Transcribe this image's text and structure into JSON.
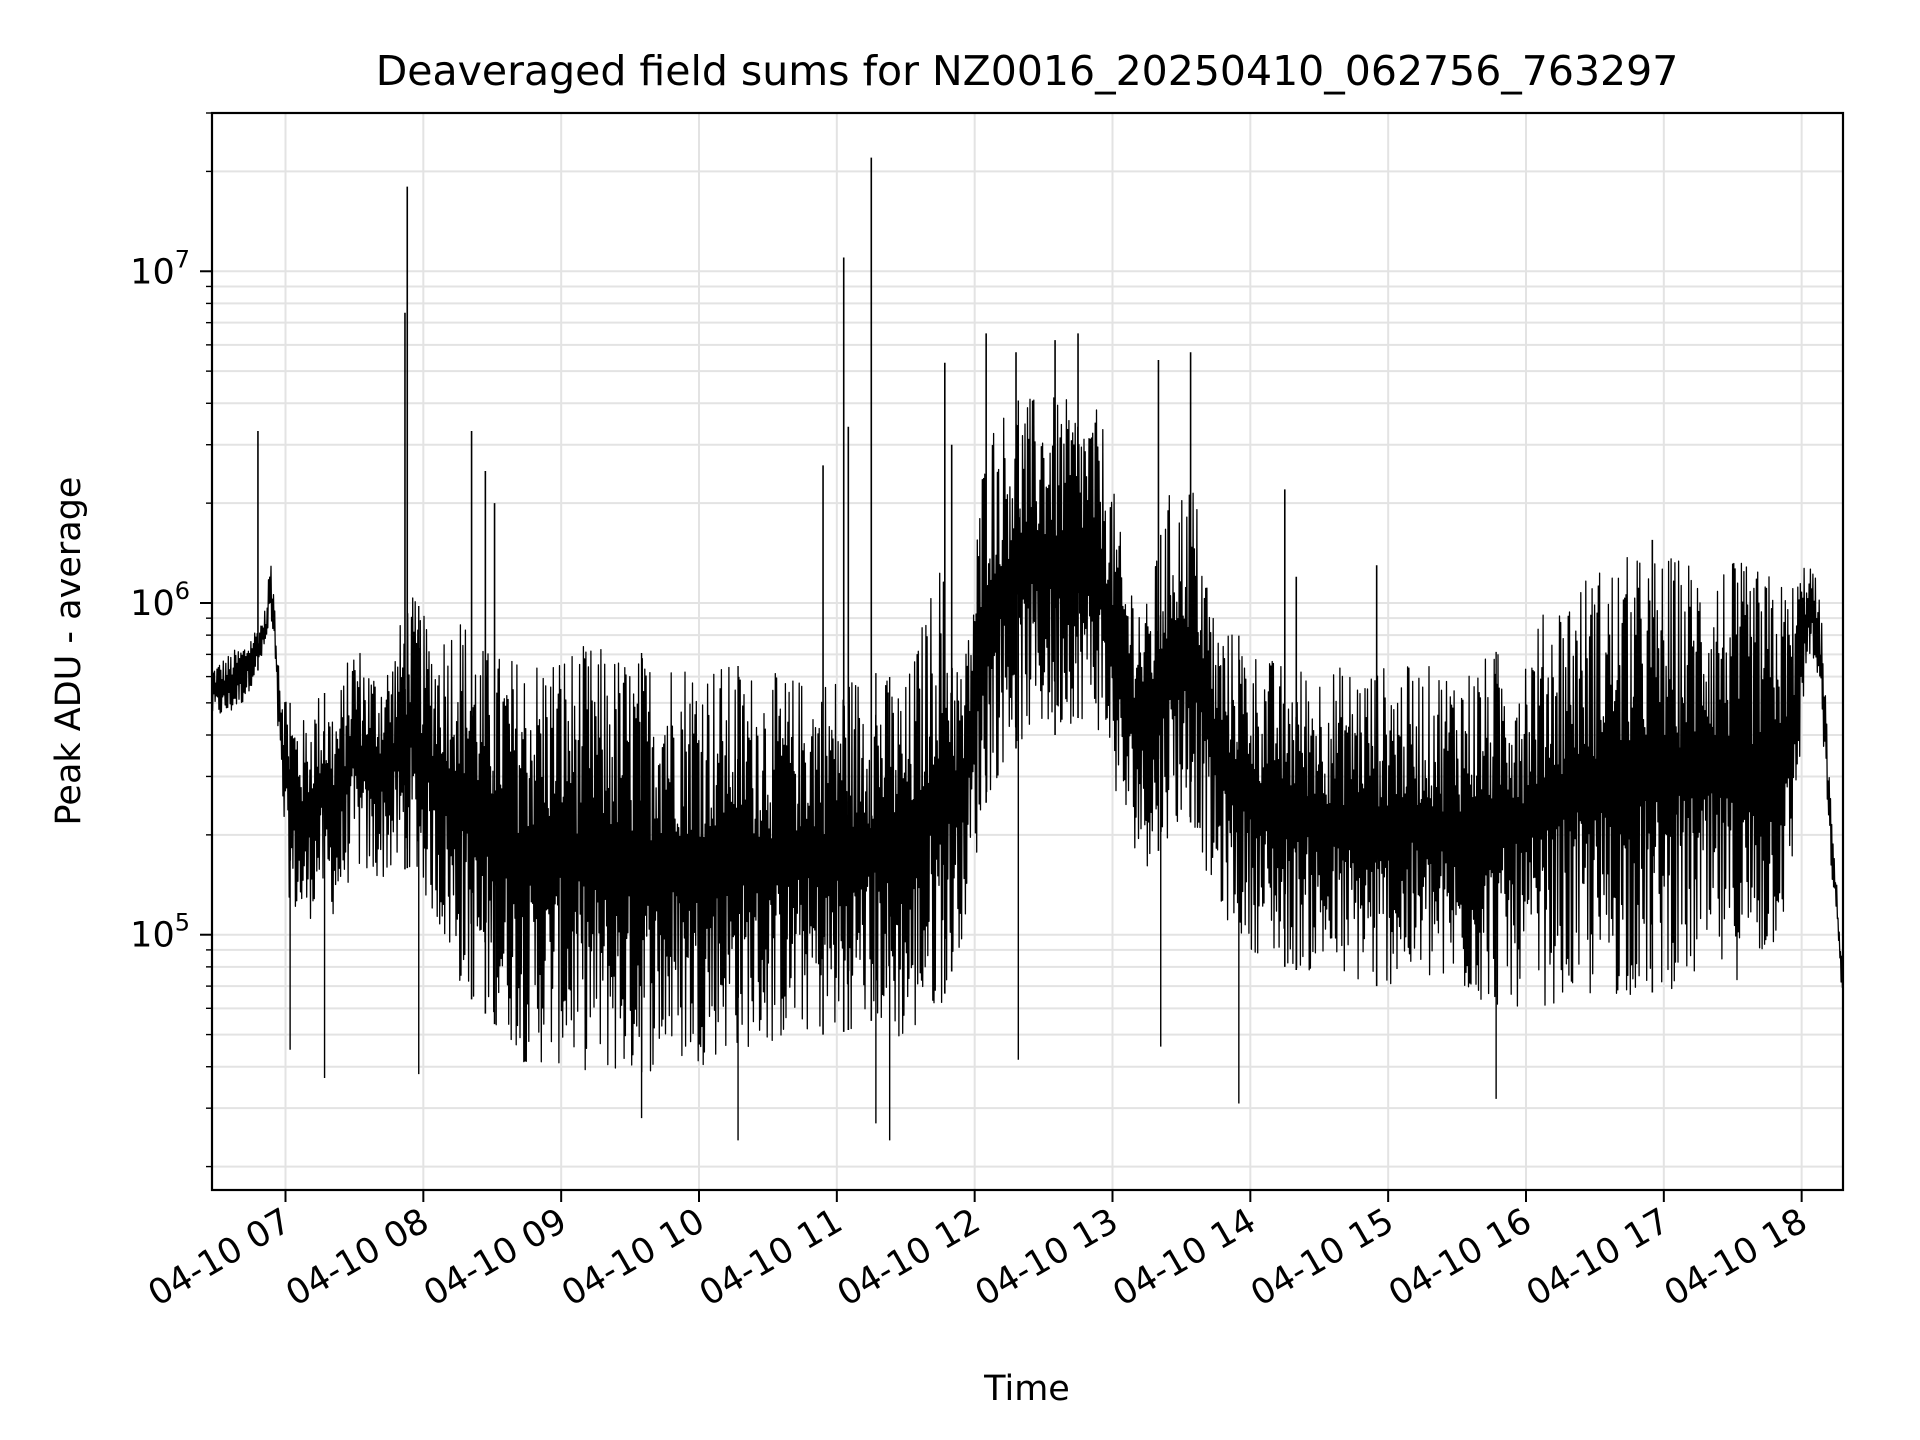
{
  "chart_data": {
    "type": "line",
    "title": "Deaveraged field sums for NZ0016_20250410_062756_763297",
    "xlabel": "Time",
    "ylabel": "Peak ADU - average",
    "x_scale": "time",
    "y_scale": "log",
    "xlim": [
      "2025-04-10 06:28",
      "2025-04-10 18:18"
    ],
    "ylim": [
      17000,
      30000000
    ],
    "x_ticks": [
      {
        "value": "2025-04-10 07:00",
        "label": "04-10 07"
      },
      {
        "value": "2025-04-10 08:00",
        "label": "04-10 08"
      },
      {
        "value": "2025-04-10 09:00",
        "label": "04-10 09"
      },
      {
        "value": "2025-04-10 10:00",
        "label": "04-10 10"
      },
      {
        "value": "2025-04-10 11:00",
        "label": "04-10 11"
      },
      {
        "value": "2025-04-10 12:00",
        "label": "04-10 12"
      },
      {
        "value": "2025-04-10 13:00",
        "label": "04-10 13"
      },
      {
        "value": "2025-04-10 14:00",
        "label": "04-10 14"
      },
      {
        "value": "2025-04-10 15:00",
        "label": "04-10 15"
      },
      {
        "value": "2025-04-10 16:00",
        "label": "04-10 16"
      },
      {
        "value": "2025-04-10 17:00",
        "label": "04-10 17"
      },
      {
        "value": "2025-04-10 18:00",
        "label": "04-10 18"
      }
    ],
    "y_ticks": [
      {
        "value": 100000,
        "base": "10",
        "exp": "5"
      },
      {
        "value": 1000000,
        "base": "10",
        "exp": "6"
      },
      {
        "value": 10000000,
        "base": "10",
        "exp": "7"
      }
    ],
    "grid": true,
    "line_color": "#000000",
    "grid_color": "#e3e3e3",
    "series": [
      {
        "x": [
          "2025-04-10 06:28",
          "2025-04-10 06:35",
          "2025-04-10 06:42",
          "2025-04-10 06:49",
          "2025-04-10 06:52",
          "2025-04-10 06:53",
          "2025-04-10 06:55",
          "2025-04-10 06:58",
          "2025-04-10 07:02",
          "2025-04-10 07:08",
          "2025-04-10 07:15",
          "2025-04-10 07:22",
          "2025-04-10 07:30",
          "2025-04-10 07:38",
          "2025-04-10 07:46",
          "2025-04-10 07:54",
          "2025-04-10 08:05",
          "2025-04-10 08:15",
          "2025-04-10 08:25",
          "2025-04-10 08:35",
          "2025-04-10 08:45",
          "2025-04-10 09:00",
          "2025-04-10 09:15",
          "2025-04-10 09:30",
          "2025-04-10 09:45",
          "2025-04-10 10:00",
          "2025-04-10 10:15",
          "2025-04-10 10:30",
          "2025-04-10 10:45",
          "2025-04-10 11:00",
          "2025-04-10 11:15",
          "2025-04-10 11:30",
          "2025-04-10 11:45",
          "2025-04-10 11:55",
          "2025-04-10 12:05",
          "2025-04-10 12:15",
          "2025-04-10 12:25",
          "2025-04-10 12:35",
          "2025-04-10 12:45",
          "2025-04-10 12:55",
          "2025-04-10 13:05",
          "2025-04-10 13:15",
          "2025-04-10 13:25",
          "2025-04-10 13:35",
          "2025-04-10 13:45",
          "2025-04-10 14:00",
          "2025-04-10 14:15",
          "2025-04-10 14:30",
          "2025-04-10 14:45",
          "2025-04-10 15:00",
          "2025-04-10 15:15",
          "2025-04-10 15:30",
          "2025-04-10 15:45",
          "2025-04-10 16:00",
          "2025-04-10 16:15",
          "2025-04-10 16:30",
          "2025-04-10 16:45",
          "2025-04-10 17:00",
          "2025-04-10 17:15",
          "2025-04-10 17:30",
          "2025-04-10 17:45",
          "2025-04-10 17:55",
          "2025-04-10 18:00",
          "2025-04-10 18:03",
          "2025-04-10 18:06",
          "2025-04-10 18:09",
          "2025-04-10 18:12",
          "2025-04-10 18:15",
          "2025-04-10 18:18"
        ],
        "hi": [
          650000,
          700000,
          760000,
          880000,
          1000000,
          1400000,
          1100000,
          650000,
          500000,
          450000,
          550000,
          500000,
          800000,
          650000,
          700000,
          1100000,
          800000,
          1000000,
          750000,
          700000,
          700000,
          750000,
          750000,
          700000,
          720000,
          700000,
          650000,
          620000,
          600000,
          620000,
          620000,
          580000,
          1400000,
          600000,
          3500000,
          4000000,
          4200000,
          4200000,
          4000000,
          3800000,
          1400000,
          1000000,
          2200000,
          2400000,
          900000,
          750000,
          650000,
          650000,
          650000,
          650000,
          650000,
          650000,
          700000,
          800000,
          1100000,
          1300000,
          1400000,
          1400000,
          1400000,
          1350000,
          1250000,
          1150000,
          1300000,
          1400000,
          1200000,
          900000,
          300000,
          150000,
          80000
        ],
        "lo": [
          450000,
          450000,
          500000,
          650000,
          750000,
          900000,
          700000,
          250000,
          120000,
          100000,
          130000,
          110000,
          160000,
          140000,
          150000,
          160000,
          110000,
          70000,
          60000,
          50000,
          40000,
          40000,
          38000,
          36000,
          40000,
          40000,
          45000,
          45000,
          50000,
          50000,
          55000,
          45000,
          60000,
          100000,
          250000,
          350000,
          400000,
          400000,
          450000,
          400000,
          200000,
          160000,
          200000,
          220000,
          120000,
          90000,
          80000,
          75000,
          70000,
          70000,
          70000,
          65000,
          60000,
          60000,
          62000,
          62000,
          65000,
          68000,
          70000,
          72000,
          80000,
          120000,
          400000,
          700000,
          600000,
          400000,
          180000,
          110000,
          60000
        ],
        "spikes": [
          {
            "x": "2025-04-10 06:48",
            "y": 3300000
          },
          {
            "x": "2025-04-10 07:53",
            "y": 18000000
          },
          {
            "x": "2025-04-10 07:52",
            "y": 7500000
          },
          {
            "x": "2025-04-10 08:21",
            "y": 3300000
          },
          {
            "x": "2025-04-10 08:27",
            "y": 2500000
          },
          {
            "x": "2025-04-10 08:31",
            "y": 2000000
          },
          {
            "x": "2025-04-10 10:54",
            "y": 2600000
          },
          {
            "x": "2025-04-10 11:03",
            "y": 11000000
          },
          {
            "x": "2025-04-10 11:05",
            "y": 3400000
          },
          {
            "x": "2025-04-10 11:15",
            "y": 22000000
          },
          {
            "x": "2025-04-10 11:47",
            "y": 5300000
          },
          {
            "x": "2025-04-10 11:50",
            "y": 3000000
          },
          {
            "x": "2025-04-10 12:05",
            "y": 6500000
          },
          {
            "x": "2025-04-10 12:18",
            "y": 5700000
          },
          {
            "x": "2025-04-10 12:35",
            "y": 6200000
          },
          {
            "x": "2025-04-10 12:45",
            "y": 6500000
          },
          {
            "x": "2025-04-10 13:20",
            "y": 5400000
          },
          {
            "x": "2025-04-10 13:34",
            "y": 5700000
          },
          {
            "x": "2025-04-10 14:15",
            "y": 2200000
          },
          {
            "x": "2025-04-10 14:20",
            "y": 1200000
          },
          {
            "x": "2025-04-10 14:55",
            "y": 1300000
          },
          {
            "x": "2025-04-10 16:55",
            "y": 1550000
          }
        ],
        "dips": [
          {
            "x": "2025-04-10 07:02",
            "y": 45000
          },
          {
            "x": "2025-04-10 07:17",
            "y": 37000
          },
          {
            "x": "2025-04-10 07:58",
            "y": 38000
          },
          {
            "x": "2025-04-10 09:35",
            "y": 28000
          },
          {
            "x": "2025-04-10 10:17",
            "y": 24000
          },
          {
            "x": "2025-04-10 11:17",
            "y": 27000
          },
          {
            "x": "2025-04-10 11:23",
            "y": 24000
          },
          {
            "x": "2025-04-10 12:19",
            "y": 42000
          },
          {
            "x": "2025-04-10 13:21",
            "y": 46000
          },
          {
            "x": "2025-04-10 13:55",
            "y": 31000
          },
          {
            "x": "2025-04-10 15:47",
            "y": 32000
          }
        ]
      }
    ]
  }
}
